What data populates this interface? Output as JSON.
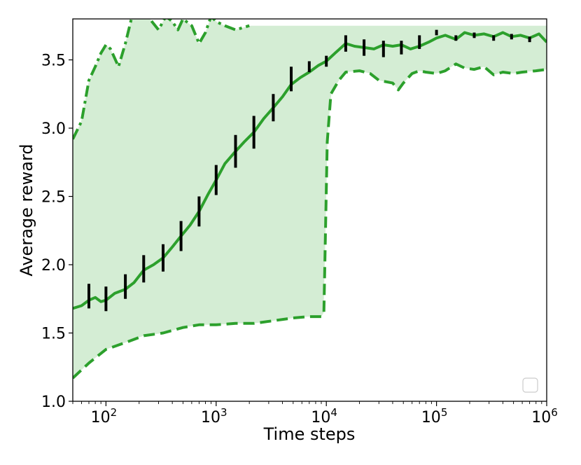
{
  "chart_data": {
    "type": "line",
    "xlabel": "Time steps",
    "ylabel": "Average reward",
    "xscale": "log",
    "xlim": [
      50,
      1000000
    ],
    "ylim": [
      1.0,
      3.8
    ],
    "grid": false,
    "legend": "bottom-right (empty)",
    "colors": {
      "line": "#2ca02c",
      "band": "#d4edd4",
      "errorbar": "#000000"
    },
    "x_ticks": [
      {
        "value": 100,
        "base": "10",
        "exp": "2"
      },
      {
        "value": 1000,
        "base": "10",
        "exp": "3"
      },
      {
        "value": 10000,
        "base": "10",
        "exp": "4"
      },
      {
        "value": 100000,
        "base": "10",
        "exp": "5"
      },
      {
        "value": 1000000,
        "base": "10",
        "exp": "6"
      }
    ],
    "y_ticks": [
      "1.0",
      "1.5",
      "2.0",
      "2.5",
      "3.0",
      "3.5"
    ],
    "mean": {
      "x": [
        50,
        60,
        70,
        80,
        90,
        100,
        120,
        150,
        180,
        220,
        270,
        330,
        400,
        480,
        580,
        700,
        850,
        1000,
        1200,
        1500,
        1800,
        2200,
        2700,
        3300,
        4000,
        4800,
        5800,
        7000,
        8500,
        10000,
        12000,
        15000,
        18000,
        22000,
        27000,
        33000,
        40000,
        48000,
        58000,
        70000,
        85000,
        100000,
        120000,
        150000,
        180000,
        220000,
        270000,
        330000,
        400000,
        480000,
        580000,
        700000,
        850000,
        1000000
      ],
      "y": [
        1.68,
        1.7,
        1.74,
        1.76,
        1.73,
        1.74,
        1.79,
        1.82,
        1.87,
        1.96,
        2.0,
        2.05,
        2.13,
        2.21,
        2.29,
        2.39,
        2.52,
        2.62,
        2.74,
        2.83,
        2.9,
        2.97,
        3.07,
        3.15,
        3.23,
        3.32,
        3.37,
        3.41,
        3.46,
        3.49,
        3.55,
        3.62,
        3.6,
        3.59,
        3.58,
        3.61,
        3.6,
        3.61,
        3.58,
        3.6,
        3.63,
        3.66,
        3.68,
        3.65,
        3.7,
        3.68,
        3.69,
        3.67,
        3.7,
        3.67,
        3.68,
        3.66,
        3.69,
        3.63
      ]
    },
    "upper": {
      "x": [
        50,
        60,
        70,
        80,
        90,
        100,
        110,
        130,
        150,
        170,
        200,
        250,
        300,
        350,
        400,
        450,
        500,
        600,
        700,
        800,
        900,
        1000,
        1200,
        1500,
        2000
      ],
      "y": [
        2.92,
        3.05,
        3.35,
        3.45,
        3.55,
        3.61,
        3.58,
        3.45,
        3.62,
        3.8,
        3.85,
        3.8,
        3.72,
        3.82,
        3.78,
        3.72,
        3.8,
        3.75,
        3.62,
        3.7,
        3.82,
        3.78,
        3.75,
        3.72,
        3.75
      ]
    },
    "lower": {
      "x": [
        50,
        70,
        100,
        150,
        220,
        330,
        500,
        700,
        1000,
        1500,
        2200,
        3300,
        5000,
        7000,
        9000,
        9500,
        10200,
        11000,
        13000,
        15000,
        20000,
        25000,
        30000,
        40000,
        45000,
        50000,
        60000,
        70000,
        80000,
        100000,
        120000,
        150000,
        180000,
        220000,
        270000,
        330000,
        400000,
        500000,
        600000,
        800000,
        1000000
      ],
      "y": [
        1.17,
        1.28,
        1.38,
        1.43,
        1.48,
        1.5,
        1.54,
        1.56,
        1.56,
        1.57,
        1.57,
        1.59,
        1.61,
        1.62,
        1.62,
        1.65,
        2.9,
        3.25,
        3.35,
        3.41,
        3.42,
        3.4,
        3.35,
        3.33,
        3.28,
        3.33,
        3.4,
        3.42,
        3.41,
        3.4,
        3.42,
        3.47,
        3.44,
        3.43,
        3.45,
        3.39,
        3.41,
        3.4,
        3.41,
        3.42,
        3.43
      ]
    },
    "error_bars": [
      {
        "x": 70,
        "y": 1.77,
        "err": 0.09
      },
      {
        "x": 100,
        "y": 1.75,
        "err": 0.09
      },
      {
        "x": 150,
        "y": 1.84,
        "err": 0.09
      },
      {
        "x": 220,
        "y": 1.97,
        "err": 0.1
      },
      {
        "x": 330,
        "y": 2.05,
        "err": 0.1
      },
      {
        "x": 480,
        "y": 2.21,
        "err": 0.11
      },
      {
        "x": 700,
        "y": 2.39,
        "err": 0.11
      },
      {
        "x": 1000,
        "y": 2.62,
        "err": 0.11
      },
      {
        "x": 1500,
        "y": 2.83,
        "err": 0.12
      },
      {
        "x": 2200,
        "y": 2.97,
        "err": 0.12
      },
      {
        "x": 3300,
        "y": 3.15,
        "err": 0.1
      },
      {
        "x": 4800,
        "y": 3.36,
        "err": 0.09
      },
      {
        "x": 7000,
        "y": 3.45,
        "err": 0.04
      },
      {
        "x": 10000,
        "y": 3.49,
        "err": 0.04
      },
      {
        "x": 15000,
        "y": 3.62,
        "err": 0.06
      },
      {
        "x": 22000,
        "y": 3.59,
        "err": 0.06
      },
      {
        "x": 33000,
        "y": 3.58,
        "err": 0.06
      },
      {
        "x": 48000,
        "y": 3.59,
        "err": 0.05
      },
      {
        "x": 70000,
        "y": 3.63,
        "err": 0.05
      },
      {
        "x": 100000,
        "y": 3.7,
        "err": 0.02
      },
      {
        "x": 150000,
        "y": 3.66,
        "err": 0.02
      },
      {
        "x": 220000,
        "y": 3.68,
        "err": 0.02
      },
      {
        "x": 330000,
        "y": 3.66,
        "err": 0.02
      },
      {
        "x": 480000,
        "y": 3.67,
        "err": 0.02
      },
      {
        "x": 700000,
        "y": 3.65,
        "err": 0.02
      }
    ]
  }
}
